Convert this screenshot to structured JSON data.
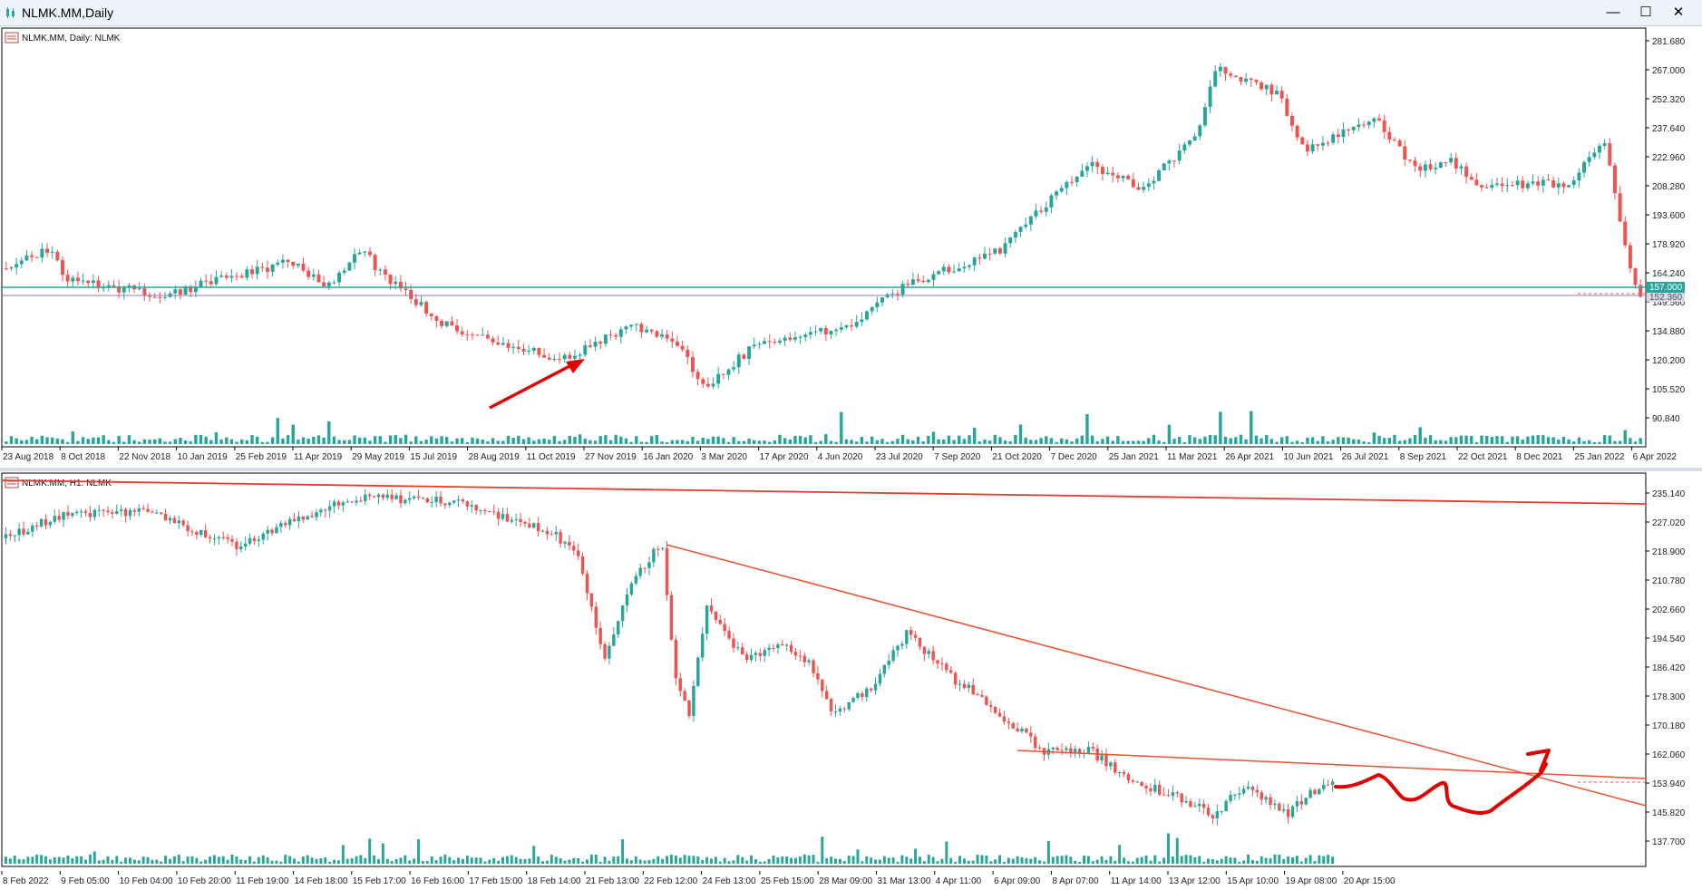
{
  "window": {
    "title": "NLMK.MM,Daily",
    "controls": {
      "minimize": "—",
      "maximize": "☐",
      "close": "✕"
    }
  },
  "colors": {
    "bull": "#26a69a",
    "bear": "#ef5350",
    "trend": "#e8422b",
    "level": "#26a69a",
    "level2": "#8e7cc3",
    "annotation": "#e00000"
  },
  "daily": {
    "label": "NLMK.MM, Daily:  NLMK",
    "price_axis": [
      "281.680",
      "267.000",
      "252.320",
      "237.640",
      "222.960",
      "208.280",
      "193.600",
      "178.920",
      "164.240",
      "149.560",
      "134.880",
      "120.200",
      "105.520",
      "90.840"
    ],
    "current_price_tag": "157.000",
    "second_tag": "152.360",
    "time_axis": [
      "23 Aug 2018",
      "8 Oct 2018",
      "22 Nov 2018",
      "10 Jan 2019",
      "25 Feb 2019",
      "11 Apr 2019",
      "29 May 2019",
      "15 Jul 2019",
      "28 Aug 2019",
      "11 Oct 2019",
      "27 Nov 2019",
      "16 Jan 2020",
      "3 Mar 2020",
      "17 Apr 2020",
      "4 Jun 2020",
      "23 Jul 2020",
      "7 Sep 2020",
      "21 Oct 2020",
      "7 Dec 2020",
      "25 Jan 2021",
      "11 Mar 2021",
      "26 Apr 2021",
      "10 Jun 2021",
      "26 Jul 2021",
      "8 Sep 2021",
      "22 Oct 2021",
      "8 Dec 2021",
      "25 Jan 2022",
      "6 Apr 2022"
    ]
  },
  "hourly": {
    "label": "NLMK.MM, H1:  NLMK",
    "price_axis": [
      "235.140",
      "227.020",
      "218.900",
      "210.780",
      "202.660",
      "194.540",
      "186.420",
      "178.300",
      "170.180",
      "162.060",
      "153.940",
      "145.820",
      "137.700"
    ],
    "time_axis": [
      "8 Feb 2022",
      "9 Feb 05:00",
      "10 Feb 04:00",
      "10 Feb 20:00",
      "11 Feb 19:00",
      "14 Feb 18:00",
      "15 Feb 17:00",
      "16 Feb 16:00",
      "17 Feb 15:00",
      "18 Feb 14:00",
      "21 Feb 13:00",
      "22 Feb 12:00",
      "24 Feb 13:00",
      "25 Feb 15:00",
      "28 Mar 09:00",
      "31 Mar 13:00",
      "4 Apr 11:00",
      "6 Apr 09:00",
      "8 Apr 07:00",
      "11 Apr 14:00",
      "13 Apr 12:00",
      "15 Apr 10:00",
      "19 Apr 08:00",
      "20 Apr 15:00"
    ]
  }
}
